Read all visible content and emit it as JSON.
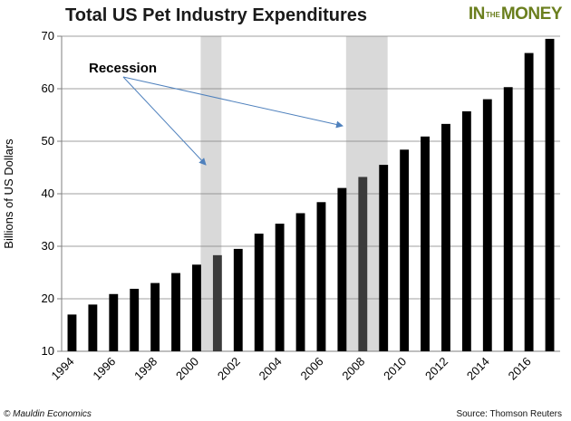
{
  "header": {
    "title": "Total US Pet Industry Expenditures",
    "brand_part1": "IN",
    "brand_part2": "THE",
    "brand_part3": "MONEY"
  },
  "footer": {
    "credit": "© Mauldin Economics",
    "source": "Source: Thomson Reuters"
  },
  "colors": {
    "bar": "#000000",
    "recession_bar": "#3a3a3a",
    "recession_band": "#d9d9d9",
    "arrow": "#4f81bd",
    "brand": "#6b7f1e"
  },
  "chart_data": {
    "type": "bar",
    "title": "Total US Pet Industry Expenditures",
    "ylabel": "Billions of US Dollars",
    "xlabel": "",
    "ylim": [
      10,
      70
    ],
    "yticks": [
      10,
      20,
      30,
      40,
      50,
      60,
      70
    ],
    "grid": "horizontal",
    "categories": [
      "1994",
      "1995",
      "1996",
      "1997",
      "1998",
      "1999",
      "2000",
      "2001",
      "2002",
      "2003",
      "2004",
      "2005",
      "2006",
      "2007",
      "2008",
      "2009",
      "2010",
      "2011",
      "2012",
      "2013",
      "2014",
      "2015",
      "2016",
      "2017"
    ],
    "values": [
      17.0,
      18.9,
      20.9,
      21.9,
      23.0,
      24.9,
      26.5,
      28.3,
      29.5,
      32.4,
      34.3,
      36.3,
      38.4,
      41.1,
      43.2,
      45.5,
      48.4,
      50.9,
      53.3,
      55.7,
      58.0,
      60.3,
      66.8,
      69.5
    ],
    "x_tick_labels": [
      "1994",
      "1996",
      "1998",
      "2000",
      "2002",
      "2004",
      "2006",
      "2008",
      "2010",
      "2012",
      "2014",
      "2016"
    ],
    "recessions": [
      [
        "2001",
        "2001"
      ],
      [
        "2008",
        "2009"
      ]
    ],
    "recession_bar_years": [
      "2001",
      "2008"
    ],
    "annotation": "Recession"
  }
}
